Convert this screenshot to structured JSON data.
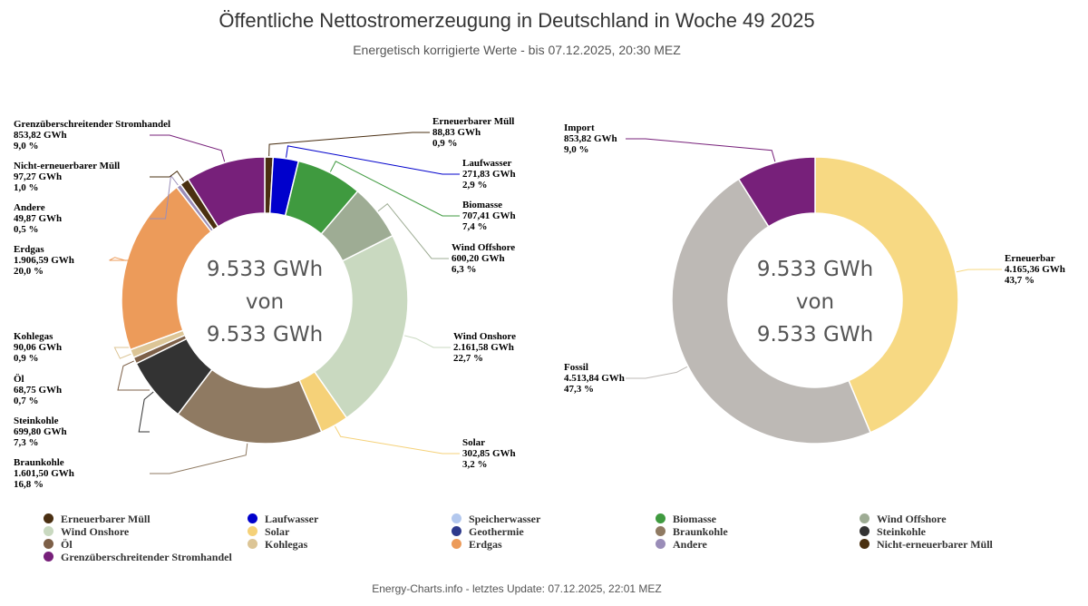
{
  "header": {
    "title": "Öffentliche Nettostromerzeugung in Deutschland in Woche 49 2025",
    "subtitle": "Energetisch korrigierte Werte - bis 07.12.2025, 20:30 MEZ"
  },
  "footer": "Energy-Charts.info - letztes Update: 07.12.2025, 22:01 MEZ",
  "chart_data": [
    {
      "type": "pie",
      "variant": "donut",
      "center_lines": [
        "9.533 GWh",
        "von",
        "9.533 GWh"
      ],
      "slices": [
        {
          "name": "Erneuerbarer Müll",
          "value_text": "88,83 GWh",
          "percent_text": "0,9 %",
          "value": 88.83,
          "color": "#4a2f12"
        },
        {
          "name": "Laufwasser",
          "value_text": "271,83 GWh",
          "percent_text": "2,9 %",
          "value": 271.83,
          "color": "#0000cc"
        },
        {
          "name": "Biomasse",
          "value_text": "707,41 GWh",
          "percent_text": "7,4 %",
          "value": 707.41,
          "color": "#3f9a3f"
        },
        {
          "name": "Wind Offshore",
          "value_text": "600,20 GWh",
          "percent_text": "6,3 %",
          "value": 600.2,
          "color": "#9eac94"
        },
        {
          "name": "Wind Onshore",
          "value_text": "2.161,58 GWh",
          "percent_text": "22,7 %",
          "value": 2161.58,
          "color": "#c9d9c0"
        },
        {
          "name": "Solar",
          "value_text": "302,85 GWh",
          "percent_text": "3,2 %",
          "value": 302.85,
          "color": "#f5d178"
        },
        {
          "name": "Braunkohle",
          "value_text": "1.601,50 GWh",
          "percent_text": "16,8 %",
          "value": 1601.5,
          "color": "#8f7a62"
        },
        {
          "name": "Steinkohle",
          "value_text": "699,80 GWh",
          "percent_text": "7,3 %",
          "value": 699.8,
          "color": "#333333"
        },
        {
          "name": "Öl",
          "value_text": "68,75 GWh",
          "percent_text": "0,7 %",
          "value": 68.75,
          "color": "#7d6048"
        },
        {
          "name": "Kohlegas",
          "value_text": "90,06 GWh",
          "percent_text": "0,9 %",
          "value": 90.06,
          "color": "#dcc596"
        },
        {
          "name": "Erdgas",
          "value_text": "1.906,59 GWh",
          "percent_text": "20,0 %",
          "value": 1906.59,
          "color": "#ec9b5a"
        },
        {
          "name": "Andere",
          "value_text": "49,87 GWh",
          "percent_text": "0,5 %",
          "value": 49.87,
          "color": "#9a8db8"
        },
        {
          "name": "Nicht-erneuerbarer Müll",
          "value_text": "97,27 GWh",
          "percent_text": "1,0 %",
          "value": 97.27,
          "color": "#4a3010"
        },
        {
          "name": "Grenzüberschreitender Stromhandel",
          "value_text": "853,82 GWh",
          "percent_text": "9,0 %",
          "value": 853.82,
          "color": "#77207a"
        }
      ]
    },
    {
      "type": "pie",
      "variant": "donut",
      "center_lines": [
        "9.533 GWh",
        "von",
        "9.533 GWh"
      ],
      "slices": [
        {
          "name": "Erneuerbar",
          "value_text": "4.165,36 GWh",
          "percent_text": "43,7 %",
          "value": 4165.36,
          "color": "#f7d983"
        },
        {
          "name": "Fossil",
          "value_text": "4.513,84 GWh",
          "percent_text": "47,3 %",
          "value": 4513.84,
          "color": "#bdb9b5"
        },
        {
          "name": "Import",
          "value_text": "853,82 GWh",
          "percent_text": "9,0 %",
          "value": 853.82,
          "color": "#77207a"
        }
      ]
    }
  ],
  "legend": [
    {
      "label": "Erneuerbarer Müll",
      "color": "#4a2f12"
    },
    {
      "label": "Laufwasser",
      "color": "#0000cc"
    },
    {
      "label": "Speicherwasser",
      "color": "#b3c8ee"
    },
    {
      "label": "Biomasse",
      "color": "#3f9a3f"
    },
    {
      "label": "Wind Offshore",
      "color": "#9eac94"
    },
    {
      "label": "Wind Onshore",
      "color": "#c9d9c0"
    },
    {
      "label": "Solar",
      "color": "#f5d178"
    },
    {
      "label": "Geothermie",
      "color": "#2e3a8c"
    },
    {
      "label": "Braunkohle",
      "color": "#8f7a62"
    },
    {
      "label": "Steinkohle",
      "color": "#333333"
    },
    {
      "label": "Öl",
      "color": "#7d6048"
    },
    {
      "label": "Kohlegas",
      "color": "#dcc596"
    },
    {
      "label": "Erdgas",
      "color": "#ec9b5a"
    },
    {
      "label": "Andere",
      "color": "#9a8db8"
    },
    {
      "label": "Nicht-erneuerbarer Müll",
      "color": "#4a3010"
    },
    {
      "label": "Grenzüberschreitender Stromhandel",
      "color": "#77207a"
    }
  ]
}
